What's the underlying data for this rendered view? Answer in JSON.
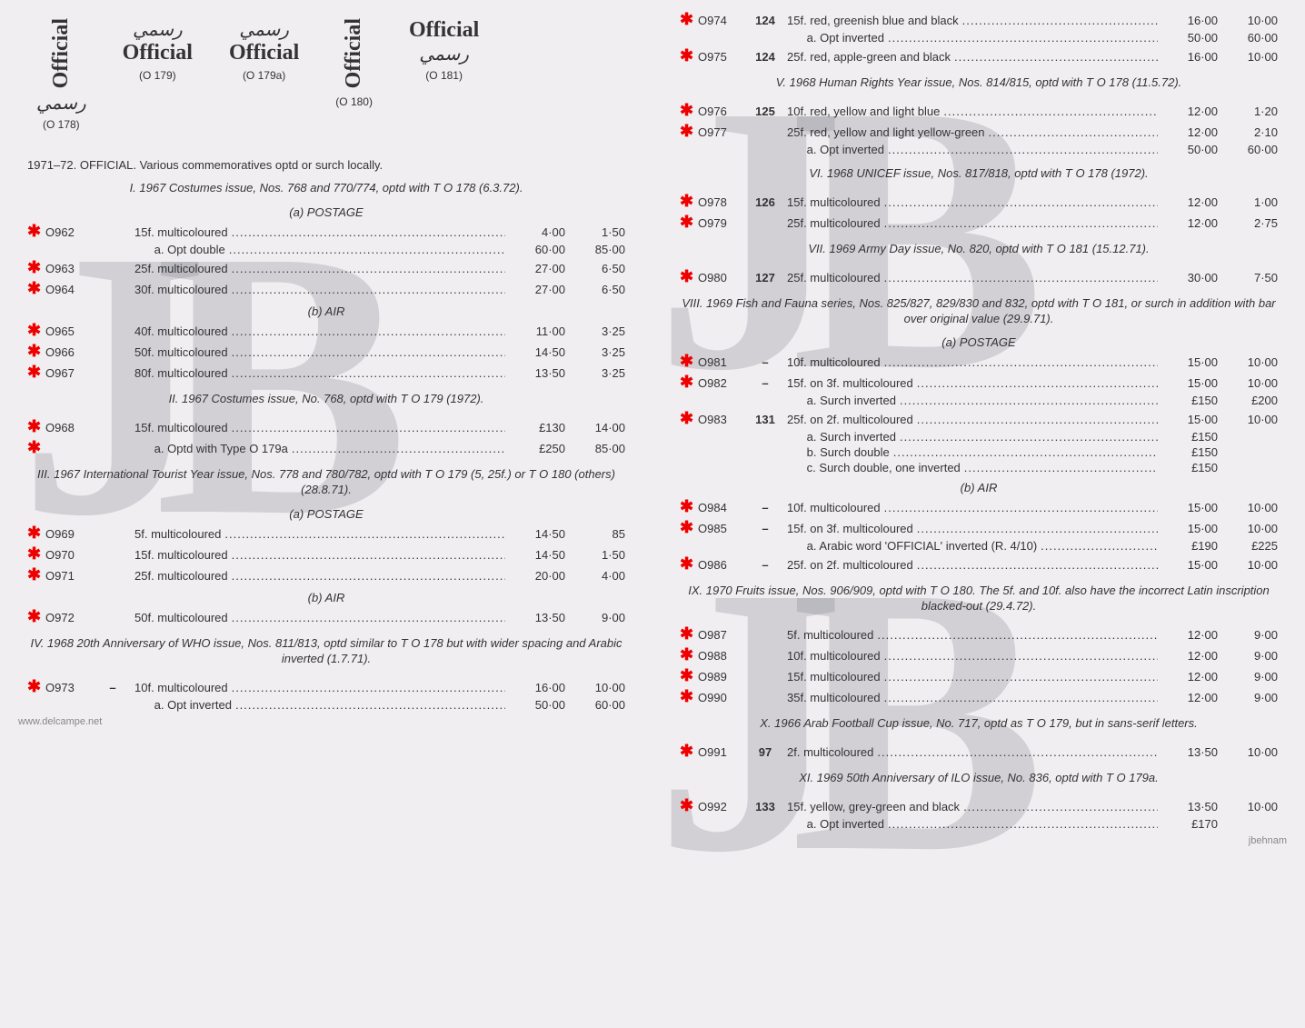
{
  "colors": {
    "asterisk": "#e00000",
    "watermark": "rgba(120,120,130,0.25)",
    "text": "#333333",
    "background": "#f0eef0"
  },
  "overprints": [
    {
      "label": "Official",
      "arabic": "رسمي",
      "ref": "(O 178)",
      "vertical": true
    },
    {
      "label": "Official",
      "arabic": "رسمي",
      "ref": "(O 179)",
      "vertical": false
    },
    {
      "label": "Official",
      "arabic": "رسمي",
      "ref": "(O 179a)",
      "vertical": false
    },
    {
      "label": "Official",
      "arabic": "",
      "ref": "(O 180)",
      "vertical": true
    },
    {
      "label": "Official",
      "arabic": "رسمي",
      "ref": "(O 181)",
      "vertical": false
    }
  ],
  "main_heading": "1971–72. OFFICIAL. Various commemoratives optd or surch locally.",
  "sections": {
    "s1": {
      "title": "I. 1967 Costumes issue, Nos. 768 and 770/774, optd with T O 178 (6.3.72).",
      "sub_a": "(a) POSTAGE",
      "sub_b": "(b) AIR",
      "rows_a": [
        {
          "ast": "✱",
          "cat": "O962",
          "typ": "",
          "desc": "15f. multicoloured",
          "p1": "4·00",
          "p2": "1·50",
          "sub": [
            {
              "desc": "a. Opt double",
              "p1": "60·00",
              "p2": "85·00"
            }
          ]
        },
        {
          "ast": "✱",
          "cat": "O963",
          "typ": "",
          "desc": "25f. multicoloured",
          "p1": "27·00",
          "p2": "6·50"
        },
        {
          "ast": "✱",
          "cat": "O964",
          "typ": "",
          "desc": "30f. multicoloured",
          "p1": "27·00",
          "p2": "6·50"
        }
      ],
      "rows_b": [
        {
          "ast": "✱",
          "cat": "O965",
          "typ": "",
          "desc": "40f. multicoloured",
          "p1": "11·00",
          "p2": "3·25"
        },
        {
          "ast": "✱",
          "cat": "O966",
          "typ": "",
          "desc": "50f. multicoloured",
          "p1": "14·50",
          "p2": "3·25"
        },
        {
          "ast": "✱",
          "cat": "O967",
          "typ": "",
          "desc": "80f. multicoloured",
          "p1": "13·50",
          "p2": "3·25"
        }
      ]
    },
    "s2": {
      "title": "II. 1967 Costumes issue, No. 768, optd with T O 179 (1972).",
      "rows": [
        {
          "ast": "✱",
          "cat": "O968",
          "typ": "",
          "desc": "15f. multicoloured",
          "p1": "£130",
          "p2": "14·00",
          "sub": [
            {
              "ast": "✱",
              "desc": "a. Optd with Type O 179a",
              "p1": "£250",
              "p2": "85·00"
            }
          ]
        }
      ]
    },
    "s3": {
      "title": "III. 1967 International Tourist Year issue, Nos. 778 and 780/782, optd with T O 179 (5, 25f.) or T O 180 (others) (28.8.71).",
      "sub_a": "(a) POSTAGE",
      "sub_b": "(b) AIR",
      "rows_a": [
        {
          "ast": "✱",
          "cat": "O969",
          "typ": "",
          "desc": "5f. multicoloured",
          "p1": "14·50",
          "p2": "85"
        },
        {
          "ast": "✱",
          "cat": "O970",
          "typ": "",
          "desc": "15f. multicoloured",
          "p1": "14·50",
          "p2": "1·50"
        },
        {
          "ast": "✱",
          "cat": "O971",
          "typ": "",
          "desc": "25f. multicoloured",
          "p1": "20·00",
          "p2": "4·00"
        }
      ],
      "rows_b": [
        {
          "ast": "✱",
          "cat": "O972",
          "typ": "",
          "desc": "50f. multicoloured",
          "p1": "13·50",
          "p2": "9·00"
        }
      ]
    },
    "s4": {
      "title": "IV. 1968 20th Anniversary of WHO issue, Nos. 811/813, optd similar to T O 178 but with wider spacing and Arabic inverted (1.7.71).",
      "rows": [
        {
          "ast": "✱",
          "cat": "O973",
          "typ": "–",
          "desc": "10f. multicoloured",
          "p1": "16·00",
          "p2": "10·00",
          "sub": [
            {
              "desc": "a. Opt inverted",
              "p1": "50·00",
              "p2": "60·00"
            }
          ]
        },
        {
          "ast": "✱",
          "cat": "O974",
          "typ": "124",
          "desc": "15f. red, greenish blue and black",
          "p1": "16·00",
          "p2": "10·00",
          "sub": [
            {
              "desc": "a. Opt inverted",
              "p1": "50·00",
              "p2": "60·00"
            }
          ]
        },
        {
          "ast": "✱",
          "cat": "O975",
          "typ": "124",
          "desc": "25f. red, apple-green and black",
          "p1": "16·00",
          "p2": "10·00"
        }
      ]
    },
    "s5": {
      "title": "V. 1968 Human Rights Year issue, Nos. 814/815, optd with T O 178 (11.5.72).",
      "rows": [
        {
          "ast": "✱",
          "cat": "O976",
          "typ": "125",
          "desc": "10f. red, yellow and light blue",
          "p1": "12·00",
          "p2": "1·20"
        },
        {
          "ast": "✱",
          "cat": "O977",
          "typ": "",
          "desc": "25f. red, yellow and light yellow-green",
          "p1": "12·00",
          "p2": "2·10",
          "sub": [
            {
              "desc": "a. Opt inverted",
              "p1": "50·00",
              "p2": "60·00"
            }
          ]
        }
      ]
    },
    "s6": {
      "title": "VI. 1968 UNICEF issue, Nos. 817/818, optd with T O 178 (1972).",
      "rows": [
        {
          "ast": "✱",
          "cat": "O978",
          "typ": "126",
          "desc": "15f. multicoloured",
          "p1": "12·00",
          "p2": "1·00"
        },
        {
          "ast": "✱",
          "cat": "O979",
          "typ": "",
          "desc": "25f. multicoloured",
          "p1": "12·00",
          "p2": "2·75"
        }
      ]
    },
    "s7": {
      "title": "VII. 1969 Army Day issue, No. 820, optd with T O 181 (15.12.71).",
      "rows": [
        {
          "ast": "✱",
          "cat": "O980",
          "typ": "127",
          "desc": "25f. multicoloured",
          "p1": "30·00",
          "p2": "7·50"
        }
      ]
    },
    "s8": {
      "title": "VIII. 1969 Fish and Fauna series, Nos. 825/827, 829/830 and 832, optd with T O 181, or surch in addition with bar over original value (29.9.71).",
      "sub_a": "(a) POSTAGE",
      "sub_b": "(b) AIR",
      "rows_a": [
        {
          "ast": "✱",
          "cat": "O981",
          "typ": "–",
          "desc": "10f. multicoloured",
          "p1": "15·00",
          "p2": "10·00"
        },
        {
          "ast": "✱",
          "cat": "O982",
          "typ": "–",
          "desc": "15f. on 3f. multicoloured",
          "p1": "15·00",
          "p2": "10·00",
          "sub": [
            {
              "desc": "a. Surch inverted",
              "p1": "£150",
              "p2": "£200"
            }
          ]
        },
        {
          "ast": "✱",
          "cat": "O983",
          "typ": "131",
          "desc": "25f. on 2f. multicoloured",
          "p1": "15·00",
          "p2": "10·00",
          "sub": [
            {
              "desc": "a. Surch inverted",
              "p1": "£150",
              "p2": ""
            },
            {
              "desc": "b. Surch double",
              "p1": "£150",
              "p2": ""
            },
            {
              "desc": "c. Surch double, one inverted",
              "p1": "£150",
              "p2": ""
            }
          ]
        }
      ],
      "rows_b": [
        {
          "ast": "✱",
          "cat": "O984",
          "typ": "–",
          "desc": "10f. multicoloured",
          "p1": "15·00",
          "p2": "10·00"
        },
        {
          "ast": "✱",
          "cat": "O985",
          "typ": "–",
          "desc": "15f. on 3f. multicoloured",
          "p1": "15·00",
          "p2": "10·00",
          "sub": [
            {
              "desc": "a. Arabic word 'OFFICIAL' inverted (R. 4/10)",
              "p1": "£190",
              "p2": "£225"
            }
          ]
        },
        {
          "ast": "✱",
          "cat": "O986",
          "typ": "–",
          "desc": "25f. on 2f. multicoloured",
          "p1": "15·00",
          "p2": "10·00"
        }
      ]
    },
    "s9": {
      "title": "IX. 1970 Fruits issue, Nos. 906/909, optd with T O 180. The 5f. and 10f. also have the incorrect Latin inscription blacked-out (29.4.72).",
      "rows": [
        {
          "ast": "✱",
          "cat": "O987",
          "typ": "",
          "desc": "5f. multicoloured",
          "p1": "12·00",
          "p2": "9·00"
        },
        {
          "ast": "✱",
          "cat": "O988",
          "typ": "",
          "desc": "10f. multicoloured",
          "p1": "12·00",
          "p2": "9·00"
        },
        {
          "ast": "✱",
          "cat": "O989",
          "typ": "",
          "desc": "15f. multicoloured",
          "p1": "12·00",
          "p2": "9·00"
        },
        {
          "ast": "✱",
          "cat": "O990",
          "typ": "",
          "desc": "35f. multicoloured",
          "p1": "12·00",
          "p2": "9·00"
        }
      ]
    },
    "s10": {
      "title": "X. 1966 Arab Football Cup issue, No. 717, optd as T O 179, but in sans-serif letters.",
      "rows": [
        {
          "ast": "✱",
          "cat": "O991",
          "typ": "97",
          "desc": "2f. multicoloured",
          "p1": "13·50",
          "p2": "10·00"
        }
      ]
    },
    "s11": {
      "title": "XI. 1969 50th Anniversary of ILO issue, No. 836, optd with T O 179a.",
      "rows": [
        {
          "ast": "✱",
          "cat": "O992",
          "typ": "133",
          "desc": "15f. yellow, grey-green and black",
          "p1": "13·50",
          "p2": "10·00",
          "sub": [
            {
              "desc": "a. Opt inverted",
              "p1": "£170",
              "p2": ""
            }
          ]
        }
      ]
    }
  },
  "footer": {
    "left": "www.delcampe.net",
    "right": "jbehnam"
  },
  "watermark_text": "JB"
}
